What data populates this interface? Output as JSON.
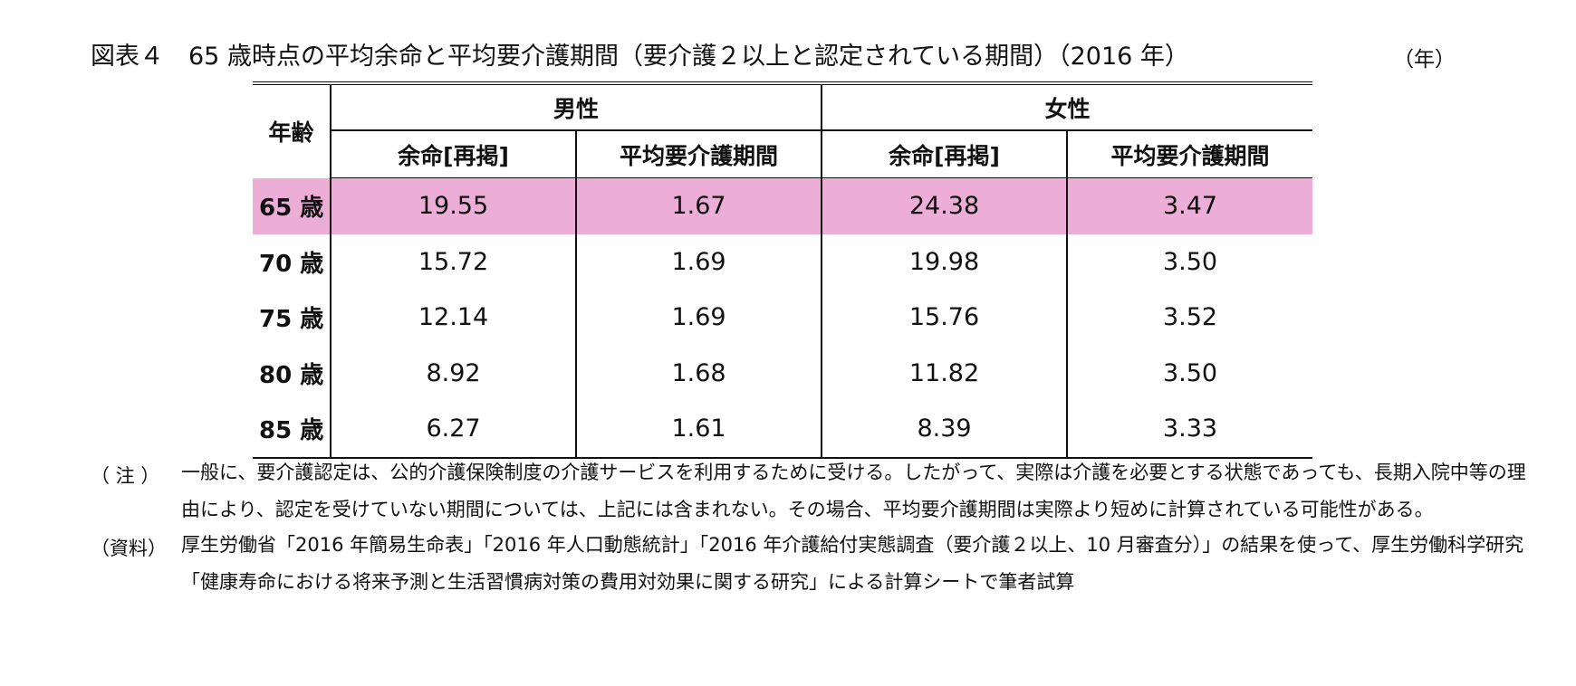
{
  "title": "図表４　65 歳時点の平均余命と平均要介護期間（要介護２以上と認定されている期間）（2016 年）",
  "unit": "（年）",
  "table": {
    "age_header": "年齢",
    "groups": [
      "男性",
      "女性"
    ],
    "subheaders": [
      "余命[再掲]",
      "平均要介護期間",
      "余命[再掲]",
      "平均要介護期間"
    ],
    "rows": [
      {
        "age": "65 歳",
        "values": [
          "19.55",
          "1.67",
          "24.38",
          "3.47"
        ],
        "highlight": true
      },
      {
        "age": "70 歳",
        "values": [
          "15.72",
          "1.69",
          "19.98",
          "3.50"
        ]
      },
      {
        "age": "75 歳",
        "values": [
          "12.14",
          "1.69",
          "15.76",
          "3.52"
        ]
      },
      {
        "age": "80 歳",
        "values": [
          "8.92",
          "1.68",
          "11.82",
          "3.50"
        ]
      },
      {
        "age": "85 歳",
        "values": [
          "6.27",
          "1.61",
          "8.39",
          "3.33"
        ]
      }
    ],
    "highlight_color": "#ecadd6"
  },
  "notes": [
    {
      "label": "（ 注 ）",
      "text": "一般に、要介護認定は、公的介護保険制度の介護サービスを利用するために受ける。したがって、実際は介護を必要とする状態であっても、長期入院中等の理由により、認定を受けていない期間については、上記には含まれない。その場合、平均要介護期間は実際より短めに計算されている可能性がある。"
    },
    {
      "label": "（資料）",
      "text": "厚生労働省「2016 年簡易生命表」「2016 年人口動態統計」「2016 年介護給付実態調査（要介護２以上、10 月審査分）」の結果を使って、厚生労働科学研究「健康寿命における将来予測と生活習慣病対策の費用対効果に関する研究」による計算シートで筆者試算"
    }
  ]
}
